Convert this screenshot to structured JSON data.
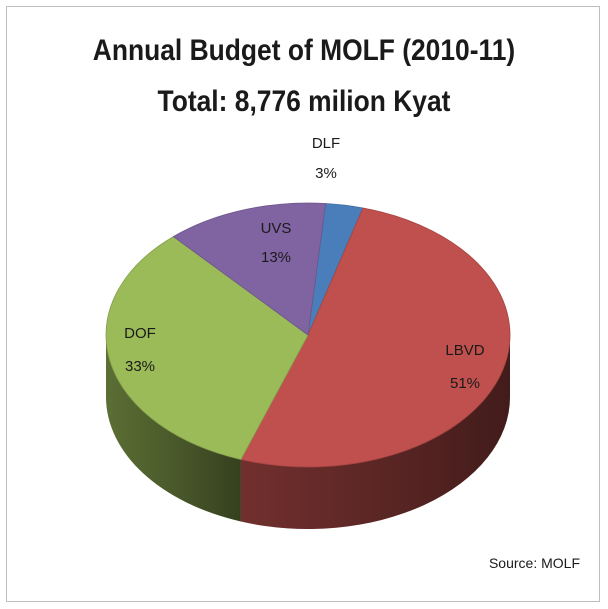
{
  "chart_data": {
    "type": "pie",
    "title": "Annual Budget of MOLF (2010-11)",
    "subtitle": "Total: 8,776 milion Kyat",
    "slices": [
      {
        "label": "DLF",
        "value_label": "3%",
        "value": 3,
        "color": "#4a7ebb"
      },
      {
        "label": "LBVD",
        "value_label": "51%",
        "value": 51,
        "color": "#c0504d"
      },
      {
        "label": "DOF",
        "value_label": "33%",
        "value": 33,
        "color": "#9bbb59"
      },
      {
        "label": "UVS",
        "value_label": "13%",
        "value": 13,
        "color": "#8064a2"
      }
    ],
    "style": "3d-pie",
    "legend": "none",
    "source": "Source: MOLF"
  }
}
